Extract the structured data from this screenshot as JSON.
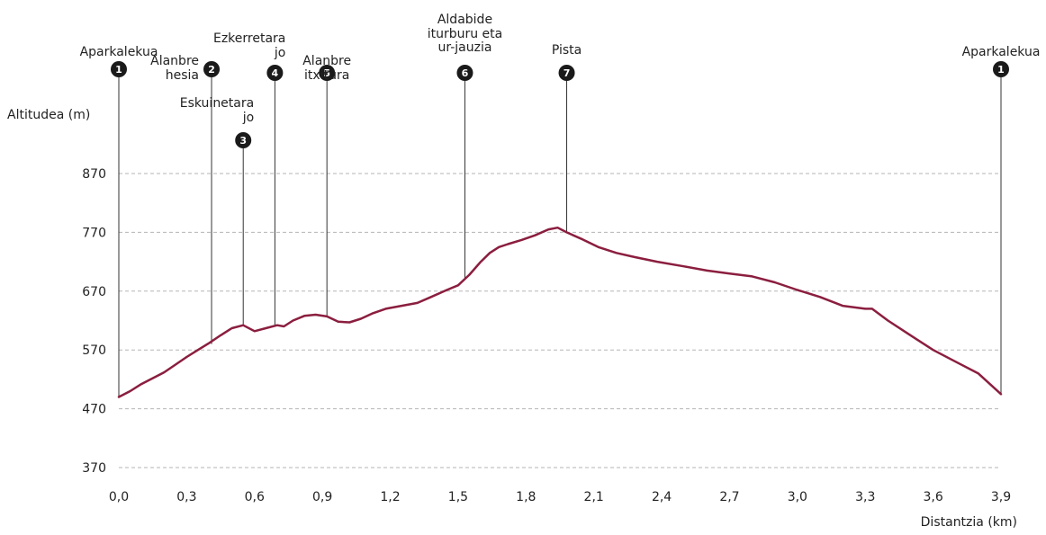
{
  "chart_data": {
    "type": "area",
    "ylabel": "Altitudea (m)",
    "xlabel": "Distantzia (km)",
    "xlim": [
      0,
      3.9
    ],
    "ylim": [
      370,
      870
    ],
    "x_ticks": [
      0,
      0.3,
      0.6,
      0.9,
      1.2,
      1.5,
      1.8,
      2.1,
      2.4,
      2.7,
      3.0,
      3.3,
      3.6,
      3.9
    ],
    "x_tick_labels": [
      "0,0",
      "0,3",
      "0,6",
      "0,9",
      "1,2",
      "1,5",
      "1,8",
      "2,1",
      "2,4",
      "2,7",
      "3,0",
      "3,3",
      "3,6",
      "3,9"
    ],
    "y_ticks": [
      370,
      470,
      570,
      670,
      770,
      870
    ],
    "y_tick_labels": [
      "370",
      "470",
      "570",
      "670",
      "770",
      "870"
    ],
    "grid": true,
    "line_color": "#8b1e3f",
    "marker_color": "#1a1a1a",
    "profile": {
      "x": [
        0.0,
        0.05,
        0.1,
        0.15,
        0.2,
        0.25,
        0.3,
        0.35,
        0.4,
        0.45,
        0.5,
        0.55,
        0.6,
        0.65,
        0.7,
        0.73,
        0.77,
        0.82,
        0.87,
        0.92,
        0.97,
        1.02,
        1.07,
        1.12,
        1.18,
        1.25,
        1.32,
        1.38,
        1.45,
        1.5,
        1.55,
        1.6,
        1.64,
        1.68,
        1.72,
        1.78,
        1.84,
        1.9,
        1.94,
        1.98,
        2.05,
        2.12,
        2.2,
        2.28,
        2.38,
        2.5,
        2.6,
        2.7,
        2.8,
        2.9,
        3.0,
        3.1,
        3.2,
        3.3,
        3.33,
        3.4,
        3.5,
        3.6,
        3.7,
        3.8,
        3.9
      ],
      "y": [
        490,
        500,
        512,
        522,
        532,
        545,
        558,
        570,
        582,
        595,
        607,
        612,
        602,
        607,
        612,
        610,
        620,
        628,
        630,
        627,
        618,
        617,
        623,
        632,
        640,
        645,
        650,
        660,
        672,
        680,
        698,
        720,
        735,
        745,
        750,
        757,
        765,
        775,
        778,
        770,
        758,
        745,
        735,
        728,
        720,
        712,
        705,
        700,
        695,
        685,
        672,
        660,
        645,
        640,
        640,
        620,
        595,
        570,
        550,
        530,
        495
      ]
    },
    "waypoints": [
      {
        "number": "1",
        "x": 0.0,
        "y": 490,
        "label": [
          "Aparkalekua"
        ],
        "align": "middle"
      },
      {
        "number": "2",
        "x": 0.41,
        "y": 580,
        "label": [
          "Alanbre",
          "hesia"
        ],
        "align": "left"
      },
      {
        "number": "3",
        "x": 0.55,
        "y": 612,
        "label": [
          "Eskuinetara",
          "jo"
        ],
        "align": "end"
      },
      {
        "number": "4",
        "x": 0.69,
        "y": 612,
        "label": [
          "Ezkerretara",
          "jo"
        ],
        "align": "end"
      },
      {
        "number": "5",
        "x": 0.92,
        "y": 628,
        "label": [
          "Alanbre",
          "itxitura"
        ],
        "align": "middle"
      },
      {
        "number": "6",
        "x": 1.53,
        "y": 690,
        "label": [
          "Aldabide",
          "iturburu eta",
          "ur-jauzia"
        ],
        "align": "middle"
      },
      {
        "number": "7",
        "x": 1.98,
        "y": 770,
        "label": [
          "Pista"
        ],
        "align": "middle"
      },
      {
        "number": "1",
        "x": 3.9,
        "y": 495,
        "label": [
          "Aparkalekua"
        ],
        "align": "middle"
      }
    ]
  }
}
